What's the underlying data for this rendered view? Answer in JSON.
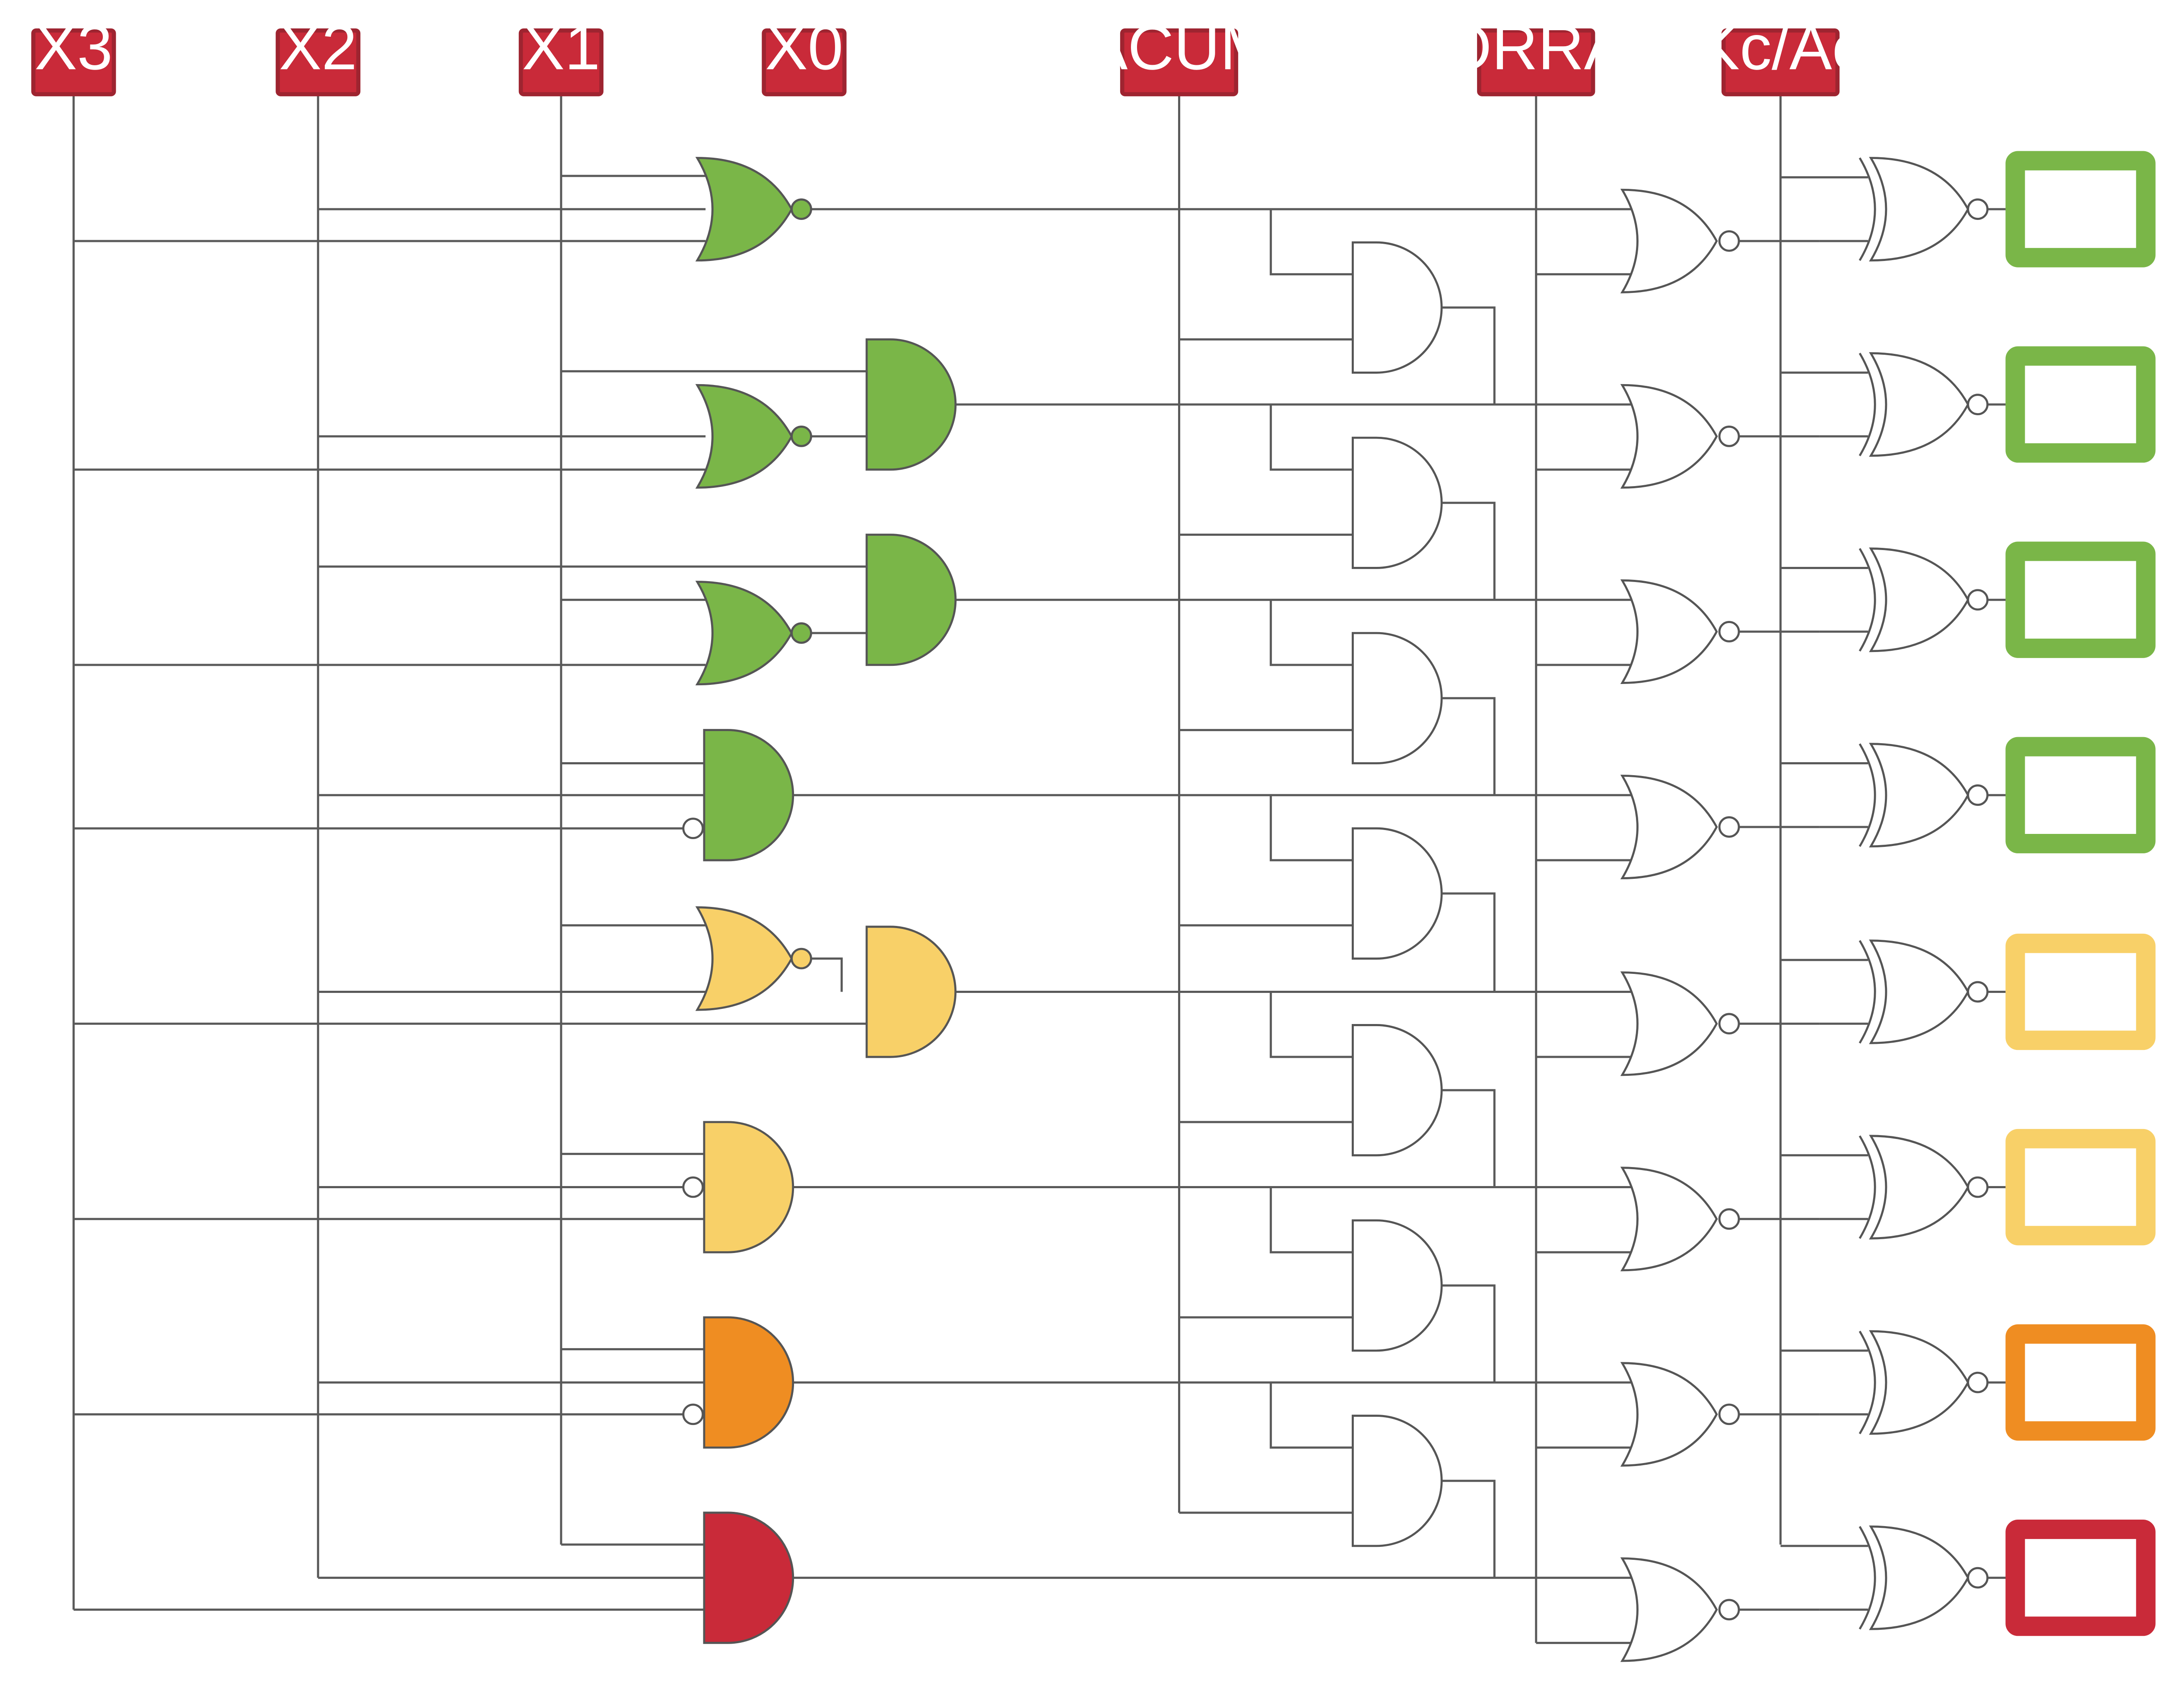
{
  "inputs": [
    {
      "label": "X3"
    },
    {
      "label": "X2"
    },
    {
      "label": "X1"
    },
    {
      "label": "X0"
    },
    {
      "label": "ACUM"
    },
    {
      "label": "BORRAR"
    },
    {
      "label": "Kc/Ac"
    }
  ],
  "colors": {
    "input_label": "#c92a39",
    "green": "#7ab648",
    "yellow": "#f8d068",
    "orange": "#ef8d22",
    "red": "#c92a39",
    "wire": "#5a5a5a",
    "gate_outline": "#555555"
  },
  "rows": [
    {
      "color": "green"
    },
    {
      "color": "green"
    },
    {
      "color": "green"
    },
    {
      "color": "green"
    },
    {
      "color": "yellow"
    },
    {
      "color": "yellow"
    },
    {
      "color": "orange"
    },
    {
      "color": "red"
    }
  ]
}
